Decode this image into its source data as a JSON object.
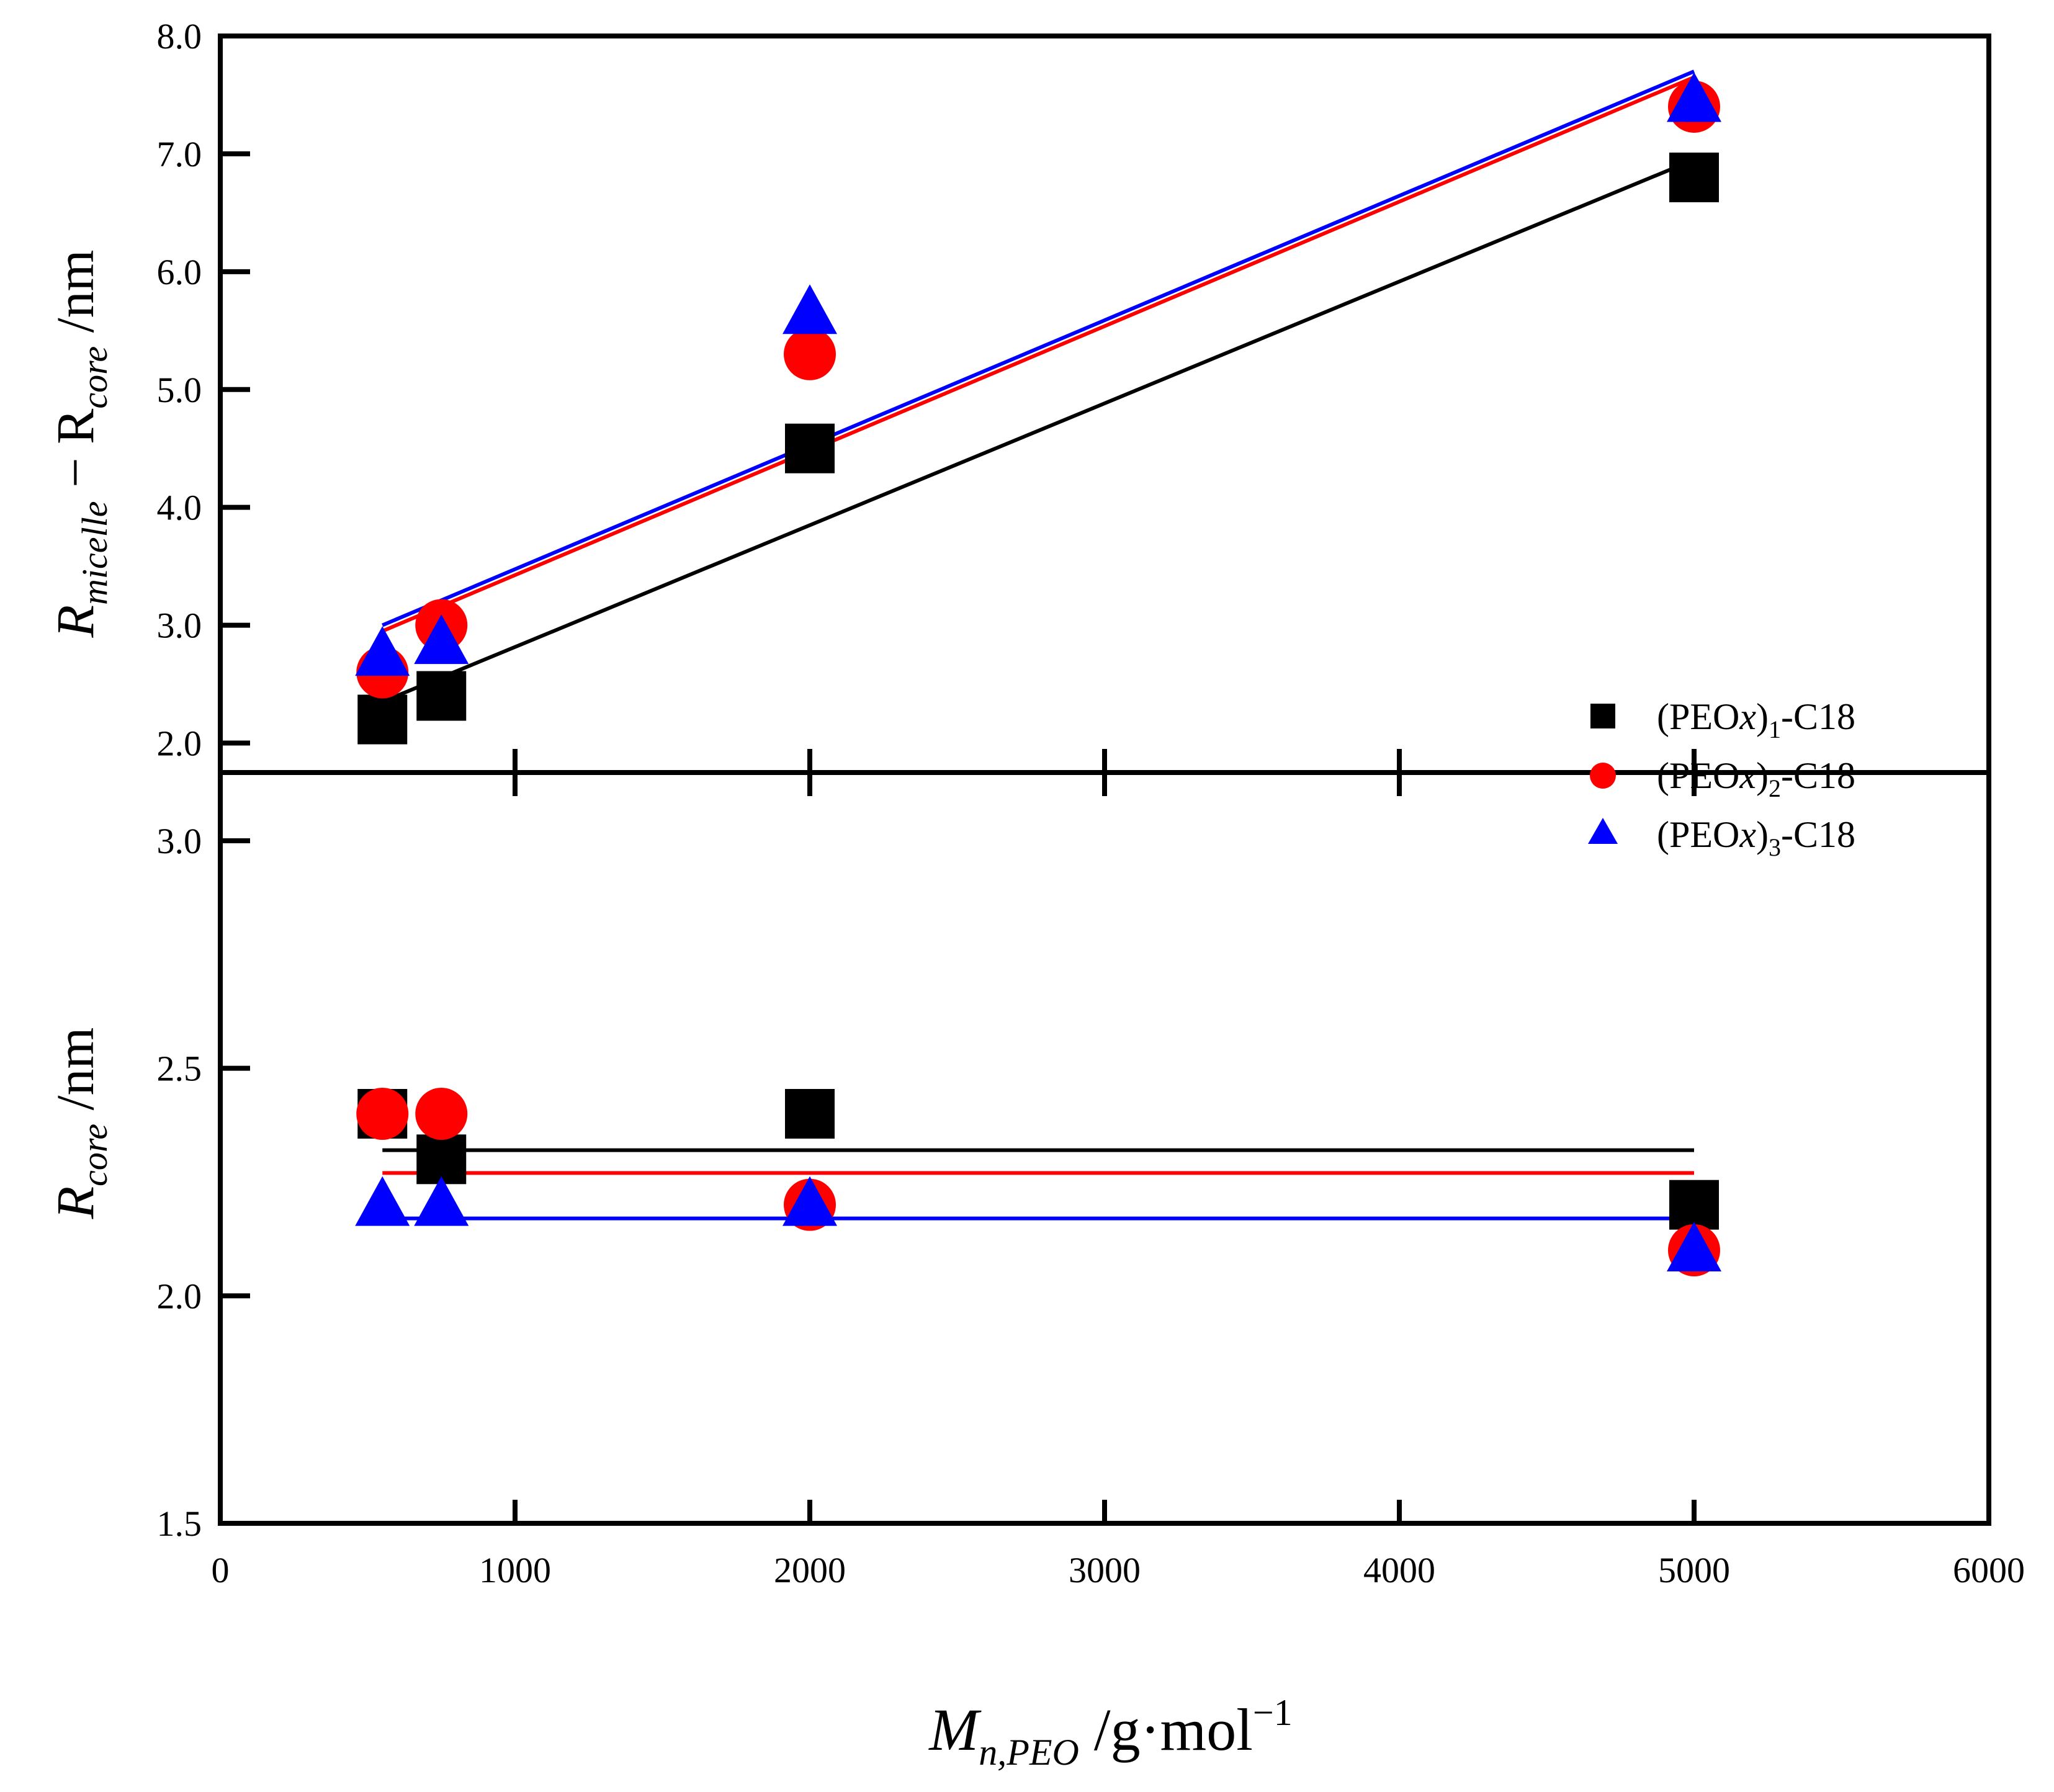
{
  "chart_data": [
    {
      "panel": "top",
      "type": "scatter",
      "ylabel": {
        "main": "R",
        "sub1": "micelle",
        "minus": " − R",
        "sub2": "core",
        "unit": " /nm"
      },
      "ylim": [
        1.75,
        8.0
      ],
      "yticks": [
        "2.0",
        "3.0",
        "4.0",
        "5.0",
        "6.0",
        "7.0",
        "8.0"
      ],
      "series": [
        {
          "name": "(PEOx)1-C18",
          "color": "#000000",
          "marker": "square",
          "x": [
            550,
            750,
            2000,
            5000
          ],
          "y": [
            2.2,
            2.4,
            4.5,
            6.8
          ],
          "fit": {
            "x": [
              550,
              5000
            ],
            "y": [
              2.35,
              6.95
            ]
          }
        },
        {
          "name": "(PEOx)2-C18",
          "color": "#ff0000",
          "marker": "circle",
          "x": [
            550,
            750,
            2000,
            5000
          ],
          "y": [
            2.6,
            3.0,
            5.3,
            7.4
          ],
          "fit": {
            "x": [
              550,
              5000
            ],
            "y": [
              2.95,
              7.65
            ]
          }
        },
        {
          "name": "(PEOx)3-C18",
          "color": "#0000ff",
          "marker": "triangle",
          "x": [
            550,
            750,
            2000,
            5000
          ],
          "y": [
            2.75,
            2.85,
            5.65,
            7.45
          ],
          "fit": {
            "x": [
              550,
              5000
            ],
            "y": [
              3.0,
              7.7
            ]
          }
        }
      ]
    },
    {
      "panel": "bottom",
      "type": "scatter",
      "ylabel": {
        "main": "R",
        "sub": "core",
        "unit": " /nm"
      },
      "ylim": [
        1.5,
        3.15
      ],
      "yticks": [
        "1.5",
        "2.0",
        "2.5",
        "3.0"
      ],
      "series": [
        {
          "name": "(PEOx)1-C18",
          "color": "#000000",
          "marker": "square",
          "x": [
            550,
            750,
            2000,
            5000
          ],
          "y": [
            2.4,
            2.3,
            2.4,
            2.2
          ],
          "fit": {
            "x": [
              550,
              5000
            ],
            "y": [
              2.32,
              2.32
            ]
          }
        },
        {
          "name": "(PEOx)2-C18",
          "color": "#ff0000",
          "marker": "circle",
          "x": [
            550,
            750,
            2000,
            5000
          ],
          "y": [
            2.4,
            2.4,
            2.2,
            2.1
          ],
          "fit": {
            "x": [
              550,
              5000
            ],
            "y": [
              2.27,
              2.27
            ]
          }
        },
        {
          "name": "(PEOx)3-C18",
          "color": "#0000ff",
          "marker": "triangle",
          "x": [
            550,
            750,
            2000,
            5000
          ],
          "y": [
            2.2,
            2.2,
            2.2,
            2.1
          ],
          "fit": {
            "x": [
              550,
              5000
            ],
            "y": [
              2.17,
              2.17
            ]
          }
        }
      ]
    }
  ],
  "xaxis": {
    "xlim": [
      0,
      6000
    ],
    "xticks": [
      "0",
      "1000",
      "2000",
      "3000",
      "4000",
      "5000",
      "6000"
    ],
    "xlabel": {
      "main": "M",
      "sub": "n,PEO",
      "unit": " /g·mol",
      "sup": "−1"
    }
  },
  "legend": {
    "placement": "right-middle",
    "items": [
      {
        "prefix": "(PEO",
        "italic": "x",
        "post": ")",
        "sub": "1",
        "suffix": "-C18",
        "marker": "square",
        "color": "#000000"
      },
      {
        "prefix": "(PEO",
        "italic": "x",
        "post": ")",
        "sub": "2",
        "suffix": "-C18",
        "marker": "circle",
        "color": "#ff0000"
      },
      {
        "prefix": "(PEO",
        "italic": "x",
        "post": ")",
        "sub": "3",
        "suffix": "-C18",
        "marker": "triangle",
        "color": "#0000ff"
      }
    ]
  }
}
